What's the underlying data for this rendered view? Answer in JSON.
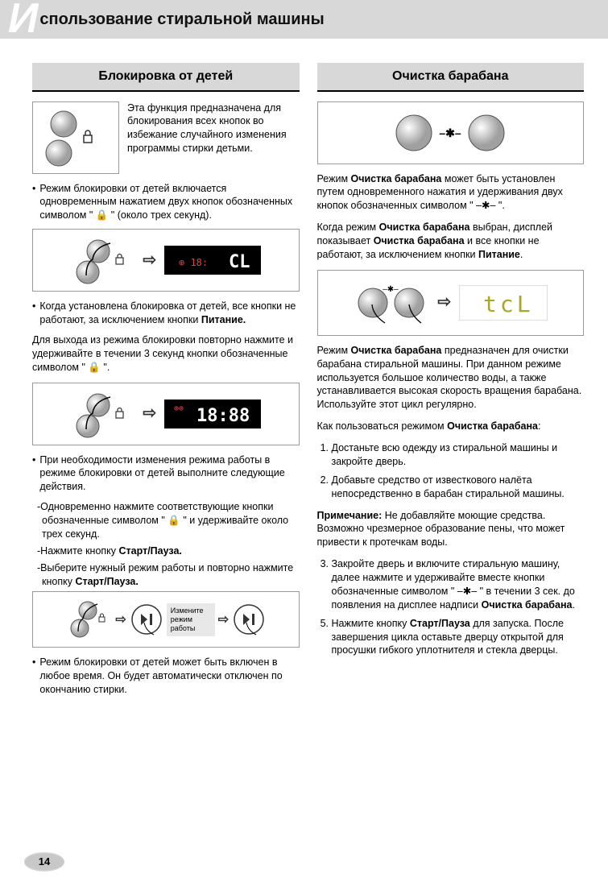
{
  "header": {
    "bigLetter": "И",
    "title": "спользование стиральной машины"
  },
  "left": {
    "title": "Блокировка от детей",
    "intro": "Эта функция предназначена для блокирования всех кнопок во избежание случайного изменения программы стирки детьми.",
    "b1": "Режим блокировки от детей включается одновременным нажатием двух кнопок обозначенных символом \" 🔒 \" (около трех секунд).",
    "display1": "CL",
    "b2_pre": "Когда установлена блокировка от детей, все кнопки не работают, за исключением кнопки ",
    "b2_bold": "Питание.",
    "p3": "Для выхода из режима блокировки повторно нажмите и удерживайте в течении 3 секунд кнопки обозначенные символом \" 🔒 \".",
    "display2": "18:88",
    "b3": "При необходимости изменения режима работы в режиме блокировки от детей выполните следующие действия.",
    "s1": "-Одновременно нажмите соответствующие кнопки обозначенные символом \" 🔒 \" и удерживайте около трех секунд.",
    "s2_pre": "-Нажмите кнопку ",
    "s2_bold": "Старт/Пауза.",
    "s3_pre": "-Выберите нужный режим работы и повторно нажмите кнопку ",
    "s3_bold": "Старт/Пауза.",
    "change_label": "Измените режим работы",
    "b4": "Режим блокировки от детей может быть включен в любое время. Он будет автоматически отключен по окончанию стирки."
  },
  "right": {
    "title": "Очистка барабана",
    "p1": "Режим Очистка барабана может быть установлен путем одновременного нажатия и удерживания двух кнопок обозначенных символом \" –✱– \".",
    "p2": "Когда режим Очистка барабана выбран, дисплей показывает Очистка барабана и все кнопки не работают, за исключением кнопки Питание.",
    "display": "tcL",
    "p3": "Режим Очистка барабана предназначен для очистки барабана стиральной машины. При данном режиме используется большое количество воды, а также устанавливается высокая скорость вращения барабана. Используйте этот цикл регулярно.",
    "howto_title": "Как пользоваться режимом Очистка барабана:",
    "li1": "Достаньте всю одежду из стиральной машины и закройте дверь.",
    "li2": "Добавьте средство от известкового налёта непосредственно в барабан стиральной машины.",
    "note_label": "Примечание:",
    "note_text": " Не добавляйте моющие средства. Возможно чрезмерное образование пены, что может привести к протечкам воды.",
    "li3": "Закройте дверь и включите стиральную машину, далее нажмите и удерживайте вместе кнопки обозначенные символом \" –✱– \" в течении 3 сек. до появления на дисплее надписи Очистка барабана.",
    "li5": "Нажмите кнопку Старт/Пауза для запуска. После завершения цикла оставьте дверцу открытой для просушки гибкого уплотнителя и стекла дверцы."
  },
  "pageNumber": "14",
  "symbols": {
    "lock": "🔒",
    "star": "–✱–"
  },
  "colors": {
    "headerBg": "#d8d8d8",
    "accent": "#000000"
  }
}
